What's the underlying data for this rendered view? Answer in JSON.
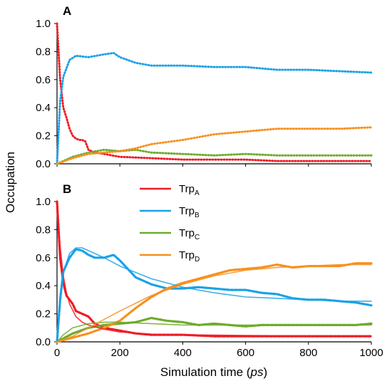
{
  "figure": {
    "y_axis_label": "Occupation",
    "x_axis_label_main": "Simulation time (",
    "x_axis_label_unit": "ps",
    "x_axis_label_close": ")"
  },
  "colors": {
    "TrpA": "#ee1c25",
    "TrpB": "#1ba1e6",
    "TrpC": "#6cab2b",
    "TrpD": "#f7901e"
  },
  "chart_data": [
    {
      "type": "line",
      "panel": "A",
      "title": "",
      "xlabel": "Simulation time (ps)",
      "ylabel": "Occupation",
      "xlim": [
        0,
        1000
      ],
      "ylim": [
        0,
        1.0
      ],
      "x_ticks": [
        "0",
        "200",
        "400",
        "600",
        "800",
        "1000"
      ],
      "y_ticks": [
        "0.0",
        "0.2",
        "0.4",
        "0.6",
        "0.8",
        "1.0"
      ],
      "line_style": "dotted",
      "series": [
        {
          "key": "TrpA",
          "x": [
            0,
            5,
            10,
            20,
            30,
            40,
            50,
            60,
            70,
            80,
            90,
            100,
            120,
            150,
            200,
            300,
            400,
            500,
            600,
            700,
            800,
            900,
            1000
          ],
          "y": [
            1.0,
            0.8,
            0.6,
            0.4,
            0.33,
            0.25,
            0.2,
            0.18,
            0.17,
            0.17,
            0.16,
            0.1,
            0.08,
            0.07,
            0.05,
            0.04,
            0.03,
            0.03,
            0.03,
            0.02,
            0.02,
            0.02,
            0.02
          ]
        },
        {
          "key": "TrpB",
          "x": [
            0,
            10,
            20,
            40,
            60,
            100,
            150,
            180,
            200,
            250,
            300,
            400,
            500,
            600,
            700,
            800,
            900,
            1000
          ],
          "y": [
            0.0,
            0.45,
            0.62,
            0.74,
            0.77,
            0.76,
            0.78,
            0.79,
            0.76,
            0.72,
            0.7,
            0.7,
            0.69,
            0.69,
            0.67,
            0.67,
            0.66,
            0.65
          ]
        },
        {
          "key": "TrpC",
          "x": [
            0,
            50,
            100,
            150,
            200,
            250,
            300,
            400,
            500,
            600,
            700,
            800,
            900,
            1000
          ],
          "y": [
            0.0,
            0.05,
            0.08,
            0.1,
            0.09,
            0.1,
            0.08,
            0.07,
            0.06,
            0.07,
            0.06,
            0.06,
            0.06,
            0.06
          ]
        },
        {
          "key": "TrpD",
          "x": [
            0,
            50,
            100,
            150,
            200,
            250,
            300,
            400,
            500,
            600,
            650,
            700,
            800,
            900,
            1000
          ],
          "y": [
            0.0,
            0.04,
            0.07,
            0.08,
            0.09,
            0.11,
            0.14,
            0.17,
            0.21,
            0.23,
            0.24,
            0.25,
            0.25,
            0.25,
            0.26
          ]
        }
      ]
    },
    {
      "type": "line",
      "panel": "B",
      "title": "",
      "xlabel": "Simulation time (ps)",
      "ylabel": "Occupation",
      "xlim": [
        0,
        1000
      ],
      "ylim": [
        0,
        1.0
      ],
      "x_ticks": [
        "0",
        "200",
        "400",
        "600",
        "800",
        "1000"
      ],
      "y_ticks": [
        "0.0",
        "0.2",
        "0.4",
        "0.6",
        "0.8",
        "1.0"
      ],
      "legend": {
        "position": "top-center",
        "entries": [
          {
            "key": "TrpA",
            "base": "Trp",
            "sub": "A"
          },
          {
            "key": "TrpB",
            "base": "Trp",
            "sub": "B"
          },
          {
            "key": "TrpC",
            "base": "Trp",
            "sub": "C"
          },
          {
            "key": "TrpD",
            "base": "Trp",
            "sub": "D"
          }
        ]
      },
      "series": [
        {
          "key": "TrpA",
          "style": "dashed",
          "x": [
            0,
            5,
            10,
            20,
            30,
            40,
            50,
            60,
            80,
            100,
            120,
            150,
            200,
            250,
            300,
            400,
            500,
            600,
            700,
            800,
            900,
            1000
          ],
          "y": [
            1.0,
            0.8,
            0.6,
            0.42,
            0.33,
            0.3,
            0.27,
            0.22,
            0.2,
            0.18,
            0.13,
            0.1,
            0.08,
            0.06,
            0.05,
            0.05,
            0.04,
            0.04,
            0.04,
            0.04,
            0.04,
            0.04
          ]
        },
        {
          "key": "TrpB",
          "style": "dashed",
          "x": [
            0,
            10,
            20,
            40,
            60,
            80,
            100,
            120,
            150,
            180,
            200,
            250,
            300,
            350,
            400,
            450,
            500,
            550,
            600,
            650,
            700,
            750,
            800,
            850,
            900,
            950,
            1000
          ],
          "y": [
            0.0,
            0.3,
            0.5,
            0.6,
            0.66,
            0.65,
            0.62,
            0.6,
            0.6,
            0.62,
            0.58,
            0.46,
            0.41,
            0.38,
            0.38,
            0.39,
            0.38,
            0.37,
            0.37,
            0.35,
            0.34,
            0.31,
            0.3,
            0.3,
            0.29,
            0.28,
            0.26
          ]
        },
        {
          "key": "TrpC",
          "style": "dashed",
          "x": [
            0,
            50,
            100,
            150,
            200,
            250,
            300,
            350,
            400,
            450,
            500,
            550,
            600,
            650,
            700,
            750,
            800,
            850,
            900,
            950,
            1000
          ],
          "y": [
            0.0,
            0.06,
            0.1,
            0.12,
            0.13,
            0.14,
            0.17,
            0.15,
            0.14,
            0.12,
            0.13,
            0.12,
            0.11,
            0.12,
            0.12,
            0.12,
            0.12,
            0.12,
            0.12,
            0.12,
            0.13
          ]
        },
        {
          "key": "TrpD",
          "style": "dashed",
          "x": [
            0,
            50,
            100,
            150,
            200,
            250,
            300,
            350,
            400,
            450,
            500,
            550,
            600,
            650,
            700,
            750,
            800,
            850,
            900,
            950,
            1000
          ],
          "y": [
            0.0,
            0.03,
            0.06,
            0.1,
            0.15,
            0.24,
            0.32,
            0.38,
            0.42,
            0.45,
            0.48,
            0.51,
            0.52,
            0.53,
            0.55,
            0.53,
            0.54,
            0.54,
            0.54,
            0.56,
            0.56
          ]
        },
        {
          "key": "TrpA",
          "style": "fit",
          "x": [
            0,
            5,
            10,
            20,
            30,
            40,
            60,
            80,
            100,
            150,
            200,
            300,
            400,
            600,
            800,
            1000
          ],
          "y": [
            1.0,
            0.82,
            0.68,
            0.47,
            0.35,
            0.27,
            0.18,
            0.14,
            0.12,
            0.09,
            0.07,
            0.055,
            0.05,
            0.045,
            0.042,
            0.04
          ]
        },
        {
          "key": "TrpB",
          "style": "fit",
          "x": [
            0,
            10,
            20,
            40,
            60,
            80,
            100,
            150,
            200,
            300,
            400,
            500,
            600,
            700,
            800,
            900,
            1000
          ],
          "y": [
            0.0,
            0.33,
            0.5,
            0.63,
            0.67,
            0.67,
            0.65,
            0.6,
            0.54,
            0.45,
            0.39,
            0.35,
            0.32,
            0.31,
            0.3,
            0.29,
            0.29
          ]
        },
        {
          "key": "TrpC",
          "style": "fit",
          "x": [
            0,
            20,
            50,
            100,
            150,
            200,
            300,
            400,
            600,
            800,
            1000
          ],
          "y": [
            0.0,
            0.05,
            0.1,
            0.13,
            0.14,
            0.14,
            0.13,
            0.12,
            0.12,
            0.12,
            0.12
          ]
        },
        {
          "key": "TrpD",
          "style": "fit",
          "x": [
            0,
            50,
            100,
            200,
            300,
            400,
            500,
            600,
            700,
            800,
            900,
            1000
          ],
          "y": [
            0.0,
            0.04,
            0.1,
            0.22,
            0.33,
            0.41,
            0.47,
            0.51,
            0.53,
            0.54,
            0.55,
            0.55
          ]
        }
      ]
    }
  ]
}
